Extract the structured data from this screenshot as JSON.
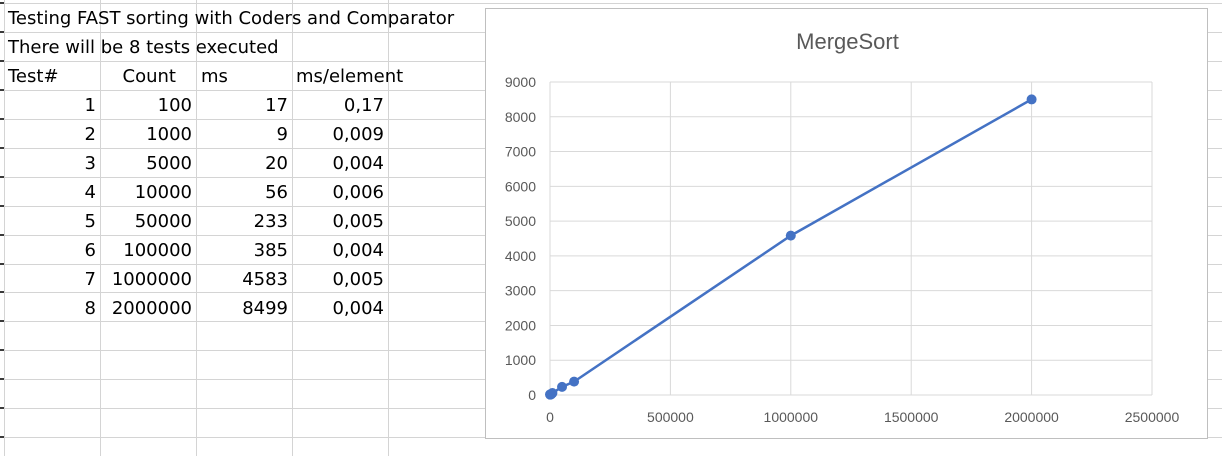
{
  "sheet": {
    "title_line": "Testing FAST sorting with Coders and Comparator",
    "subtitle_line": "There will be 8 tests executed",
    "headers": [
      "Test#",
      "Count",
      "ms",
      "ms/element"
    ],
    "rows": [
      {
        "test": "1",
        "count": "100",
        "ms": "17",
        "ms_per_element": "0,17"
      },
      {
        "test": "2",
        "count": "1000",
        "ms": "9",
        "ms_per_element": "0,009"
      },
      {
        "test": "3",
        "count": "5000",
        "ms": "20",
        "ms_per_element": "0,004"
      },
      {
        "test": "4",
        "count": "10000",
        "ms": "56",
        "ms_per_element": "0,006"
      },
      {
        "test": "5",
        "count": "50000",
        "ms": "233",
        "ms_per_element": "0,005"
      },
      {
        "test": "6",
        "count": "100000",
        "ms": "385",
        "ms_per_element": "0,004"
      },
      {
        "test": "7",
        "count": "1000000",
        "ms": "4583",
        "ms_per_element": "0,005"
      },
      {
        "test": "8",
        "count": "2000000",
        "ms": "8499",
        "ms_per_element": "0,004"
      }
    ]
  },
  "chart_data": {
    "type": "scatter",
    "title": "MergeSort",
    "xlabel": "",
    "ylabel": "",
    "xlim": [
      0,
      2500000
    ],
    "ylim": [
      0,
      9000
    ],
    "xticks": [
      0,
      500000,
      1000000,
      1500000,
      2000000,
      2500000
    ],
    "yticks": [
      0,
      1000,
      2000,
      3000,
      4000,
      5000,
      6000,
      7000,
      8000,
      9000
    ],
    "grid": true,
    "legend": "none",
    "series": [
      {
        "x": [
          100,
          1000,
          5000,
          10000,
          50000,
          100000,
          1000000,
          2000000
        ],
        "y": [
          17,
          9,
          20,
          56,
          233,
          385,
          4583,
          8499
        ],
        "color": "#4472c4",
        "line": true,
        "markers": true
      }
    ]
  },
  "colors": {
    "series": "#4472c4",
    "gridline": "#d9d9d9",
    "tick_label": "#595959",
    "cell_border": "#d4d4d4"
  }
}
